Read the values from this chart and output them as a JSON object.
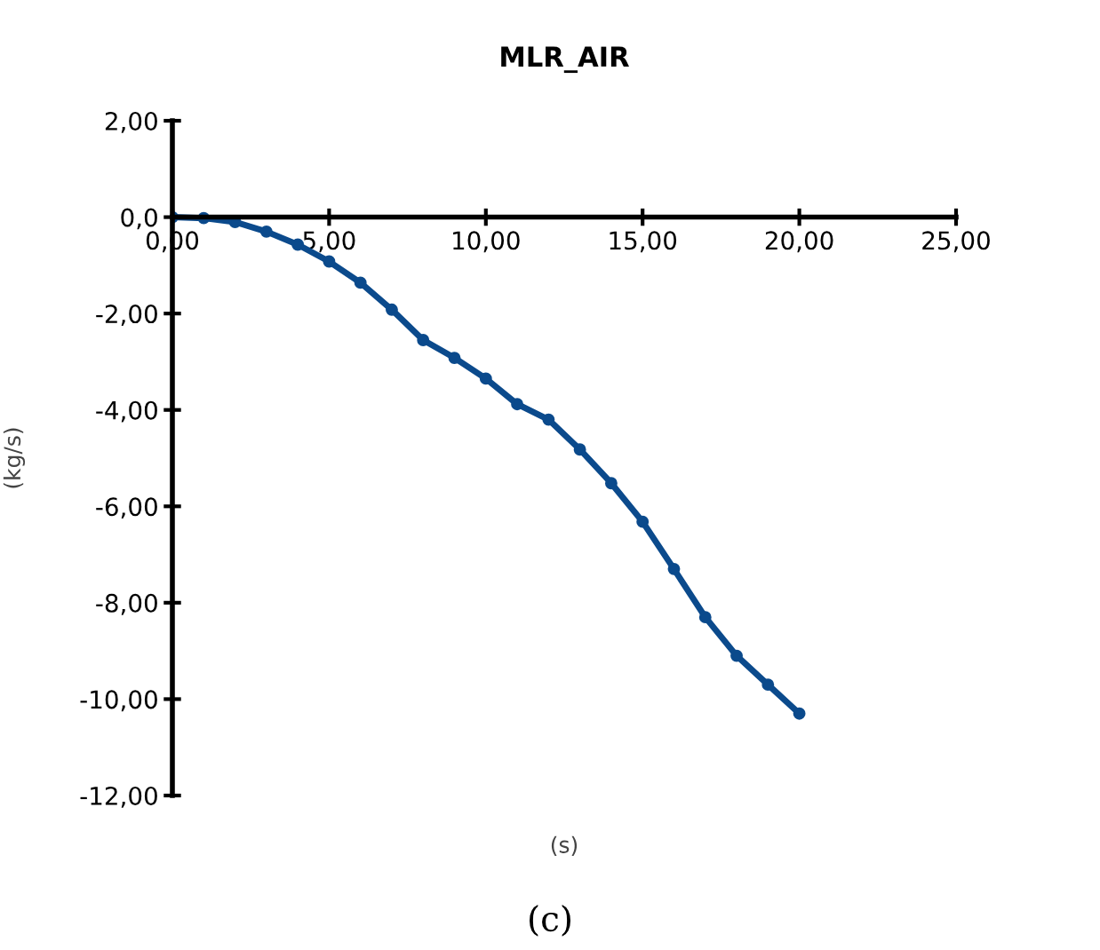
{
  "chart_data": {
    "type": "line",
    "title": "MLR_AIR",
    "xlabel": "(s)",
    "ylabel": "(kg/s)",
    "annotations": [
      "(c)"
    ],
    "x": [
      0,
      1,
      2,
      3,
      4,
      5,
      6,
      7,
      8,
      9,
      10,
      11,
      12,
      13,
      14,
      15,
      16,
      17,
      18,
      19,
      20
    ],
    "series": [
      {
        "color": "#0b4a8c",
        "values": [
          0,
          -0.02,
          -0.1,
          -0.3,
          -0.57,
          -0.92,
          -1.36,
          -1.92,
          -2.55,
          -2.92,
          -3.35,
          -3.88,
          -4.2,
          -4.82,
          -5.52,
          -6.32,
          -7.3,
          -8.3,
          -9.1,
          -9.7,
          -10.3
        ]
      }
    ],
    "xlim": [
      0,
      25
    ],
    "ylim": [
      -12,
      2
    ],
    "xticks": [
      {
        "value": 0,
        "label": "0,00"
      },
      {
        "value": 5,
        "label": "5,00"
      },
      {
        "value": 10,
        "label": "10,00"
      },
      {
        "value": 15,
        "label": "15,00"
      },
      {
        "value": 20,
        "label": "20,00"
      },
      {
        "value": 25,
        "label": "25,00"
      }
    ],
    "yticks": [
      {
        "value": -12,
        "label": "-12,00"
      },
      {
        "value": -10,
        "label": "-10,00"
      },
      {
        "value": -8,
        "label": "-8,00"
      },
      {
        "value": -6,
        "label": "-6,00"
      },
      {
        "value": -4,
        "label": "-4,00"
      },
      {
        "value": -2,
        "label": "-2,00"
      },
      {
        "value": 0,
        "label": "0,0"
      },
      {
        "value": 2,
        "label": "2,00"
      }
    ],
    "grid": false,
    "legend": false,
    "marker": "circle",
    "line_style": "solid"
  }
}
